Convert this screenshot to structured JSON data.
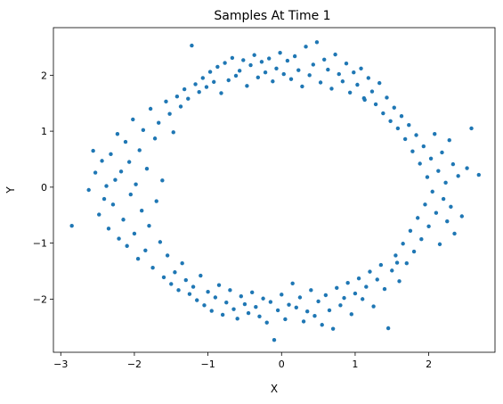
{
  "chart_data": {
    "type": "scatter",
    "title": "Samples At Time 1",
    "xlabel": "X",
    "ylabel": "Y",
    "xlim": [
      -3.1,
      2.9
    ],
    "ylim": [
      -2.95,
      2.85
    ],
    "xticks": [
      -3,
      -2,
      -1,
      0,
      1,
      2
    ],
    "yticks": [
      -2,
      -1,
      0,
      1,
      2
    ],
    "xtick_labels": [
      "−3",
      "−2",
      "−1",
      "0",
      "1",
      "2"
    ],
    "ytick_labels": [
      "−2",
      "−1",
      "0",
      "1",
      "2"
    ],
    "grid": false,
    "legend": "none",
    "series": [
      {
        "color": "#1f77b4",
        "note_points_generated": "ring of samples centered near origin, radius ~2.0 with spread ~0.25",
        "points": [
          [
            -2.85,
            -0.69
          ],
          [
            -2.62,
            -0.05
          ],
          [
            -2.56,
            0.65
          ],
          [
            -2.53,
            0.26
          ],
          [
            -2.48,
            -0.49
          ],
          [
            -2.44,
            0.47
          ],
          [
            -2.41,
            -0.21
          ],
          [
            -2.38,
            0.02
          ],
          [
            -2.35,
            -0.74
          ],
          [
            -2.32,
            0.59
          ],
          [
            -2.29,
            -0.31
          ],
          [
            -2.26,
            0.13
          ],
          [
            -2.23,
            0.95
          ],
          [
            -2.21,
            -0.92
          ],
          [
            -2.18,
            0.28
          ],
          [
            -2.15,
            -0.58
          ],
          [
            -2.12,
            0.81
          ],
          [
            -2.1,
            -1.05
          ],
          [
            -2.07,
            0.45
          ],
          [
            -2.05,
            -0.13
          ],
          [
            -2.02,
            1.21
          ],
          [
            -2.0,
            -0.83
          ],
          [
            -1.98,
            0.05
          ],
          [
            -1.95,
            -1.28
          ],
          [
            -1.93,
            0.66
          ],
          [
            -1.9,
            -0.42
          ],
          [
            -1.88,
            1.02
          ],
          [
            -1.85,
            -1.13
          ],
          [
            -1.83,
            0.33
          ],
          [
            -1.8,
            -0.69
          ],
          [
            -1.78,
            1.4
          ],
          [
            -1.75,
            -1.44
          ],
          [
            -1.72,
            0.87
          ],
          [
            -1.7,
            -0.25
          ],
          [
            -1.67,
            1.15
          ],
          [
            -1.65,
            -0.98
          ],
          [
            -1.62,
            0.12
          ],
          [
            -1.6,
            -1.61
          ],
          [
            -1.57,
            1.53
          ],
          [
            -1.55,
            -1.22
          ],
          [
            -1.52,
            1.31
          ],
          [
            -1.5,
            -1.73
          ],
          [
            -1.47,
            0.98
          ],
          [
            -1.45,
            -1.52
          ],
          [
            -1.42,
            1.62
          ],
          [
            -1.4,
            -1.84
          ],
          [
            -1.37,
            1.44
          ],
          [
            -1.35,
            -1.36
          ],
          [
            -1.32,
            1.75
          ],
          [
            -1.3,
            -1.66
          ],
          [
            -1.27,
            1.58
          ],
          [
            -1.25,
            -1.91
          ],
          [
            -1.22,
            2.53
          ],
          [
            -1.2,
            -1.78
          ],
          [
            -1.17,
            1.84
          ],
          [
            -1.15,
            -2.02
          ],
          [
            -1.12,
            1.7
          ],
          [
            -1.1,
            -1.58
          ],
          [
            -1.07,
            1.95
          ],
          [
            -1.05,
            -2.11
          ],
          [
            -1.02,
            1.79
          ],
          [
            -1.0,
            -1.87
          ],
          [
            -0.97,
            2.06
          ],
          [
            -0.95,
            -2.21
          ],
          [
            -0.92,
            1.88
          ],
          [
            -0.9,
            -1.97
          ],
          [
            -0.87,
            2.15
          ],
          [
            -0.85,
            -1.75
          ],
          [
            -0.82,
            1.68
          ],
          [
            -0.8,
            -2.28
          ],
          [
            -0.77,
            2.22
          ],
          [
            -0.75,
            -2.06
          ],
          [
            -0.72,
            1.91
          ],
          [
            -0.7,
            -1.84
          ],
          [
            -0.67,
            2.31
          ],
          [
            -0.65,
            -2.18
          ],
          [
            -0.62,
            1.99
          ],
          [
            -0.6,
            -2.35
          ],
          [
            -0.57,
            2.08
          ],
          [
            -0.55,
            -1.95
          ],
          [
            -0.52,
            2.27
          ],
          [
            -0.5,
            -2.09
          ],
          [
            -0.47,
            1.81
          ],
          [
            -0.45,
            -2.25
          ],
          [
            -0.42,
            2.18
          ],
          [
            -0.4,
            -1.88
          ],
          [
            -0.37,
            2.36
          ],
          [
            -0.35,
            -2.14
          ],
          [
            -0.32,
            1.96
          ],
          [
            -0.3,
            -2.31
          ],
          [
            -0.27,
            2.24
          ],
          [
            -0.25,
            -1.99
          ],
          [
            -0.22,
            2.05
          ],
          [
            -0.2,
            -2.42
          ],
          [
            -0.17,
            2.3
          ],
          [
            -0.15,
            -2.05
          ],
          [
            -0.12,
            1.89
          ],
          [
            -0.1,
            -2.73
          ],
          [
            -0.07,
            2.12
          ],
          [
            -0.05,
            -2.2
          ],
          [
            -0.02,
            2.4
          ],
          [
            0.0,
            -1.92
          ],
          [
            0.03,
            2.02
          ],
          [
            0.05,
            -2.36
          ],
          [
            0.08,
            2.26
          ],
          [
            0.1,
            -2.1
          ],
          [
            0.13,
            1.93
          ],
          [
            0.15,
            -1.72
          ],
          [
            0.18,
            2.34
          ],
          [
            0.2,
            -2.15
          ],
          [
            0.23,
            2.09
          ],
          [
            0.25,
            -1.97
          ],
          [
            0.28,
            1.8
          ],
          [
            0.3,
            -2.4
          ],
          [
            0.33,
            2.51
          ],
          [
            0.35,
            -2.22
          ],
          [
            0.38,
            2.0
          ],
          [
            0.4,
            -1.84
          ],
          [
            0.43,
            2.19
          ],
          [
            0.45,
            -2.3
          ],
          [
            0.48,
            2.59
          ],
          [
            0.5,
            -2.04
          ],
          [
            0.53,
            1.87
          ],
          [
            0.55,
            -2.46
          ],
          [
            0.58,
            2.28
          ],
          [
            0.6,
            -1.93
          ],
          [
            0.63,
            2.1
          ],
          [
            0.65,
            -2.2
          ],
          [
            0.68,
            1.76
          ],
          [
            0.7,
            -2.53
          ],
          [
            0.73,
            2.37
          ],
          [
            0.75,
            -1.8
          ],
          [
            0.78,
            2.02
          ],
          [
            0.8,
            -2.11
          ],
          [
            0.83,
            1.89
          ],
          [
            0.85,
            -1.98
          ],
          [
            0.88,
            2.21
          ],
          [
            0.9,
            -1.71
          ],
          [
            0.93,
            1.69
          ],
          [
            0.95,
            -2.27
          ],
          [
            0.98,
            2.05
          ],
          [
            1.0,
            -1.9
          ],
          [
            1.03,
            1.83
          ],
          [
            1.05,
            -1.63
          ],
          [
            1.08,
            2.12
          ],
          [
            1.1,
            -2.0
          ],
          [
            1.13,
            1.56
          ],
          [
            1.15,
            -1.78
          ],
          [
            1.18,
            1.95
          ],
          [
            1.2,
            -1.51
          ],
          [
            1.23,
            1.71
          ],
          [
            1.25,
            -2.13
          ],
          [
            1.28,
            1.48
          ],
          [
            1.3,
            -1.65
          ],
          [
            1.33,
            1.86
          ],
          [
            1.35,
            -1.39
          ],
          [
            1.38,
            1.32
          ],
          [
            1.4,
            -1.82
          ],
          [
            1.43,
            1.6
          ],
          [
            1.45,
            -2.52
          ],
          [
            1.48,
            1.18
          ],
          [
            1.5,
            -1.49
          ],
          [
            1.53,
            1.42
          ],
          [
            1.55,
            -1.22
          ],
          [
            1.58,
            1.05
          ],
          [
            1.6,
            -1.68
          ],
          [
            1.63,
            1.27
          ],
          [
            1.65,
            -1.01
          ],
          [
            1.68,
            0.86
          ],
          [
            1.7,
            -1.36
          ],
          [
            1.73,
            1.11
          ],
          [
            1.75,
            -0.78
          ],
          [
            1.78,
            0.64
          ],
          [
            1.8,
            -1.15
          ],
          [
            1.83,
            0.93
          ],
          [
            1.85,
            -0.55
          ],
          [
            1.88,
            0.42
          ],
          [
            1.9,
            -0.93
          ],
          [
            1.93,
            0.73
          ],
          [
            1.95,
            -0.31
          ],
          [
            1.98,
            0.18
          ],
          [
            2.0,
            -0.7
          ],
          [
            2.03,
            0.51
          ],
          [
            2.05,
            -0.08
          ],
          [
            2.08,
            0.95
          ],
          [
            2.1,
            -0.46
          ],
          [
            2.13,
            0.29
          ],
          [
            2.15,
            -1.02
          ],
          [
            2.18,
            0.62
          ],
          [
            2.2,
            -0.21
          ],
          [
            2.23,
            0.08
          ],
          [
            2.25,
            -0.61
          ],
          [
            2.28,
            0.84
          ],
          [
            2.3,
            -0.35
          ],
          [
            2.33,
            0.41
          ],
          [
            2.35,
            -0.83
          ],
          [
            2.4,
            0.2
          ],
          [
            2.45,
            -0.52
          ],
          [
            2.52,
            0.34
          ],
          [
            2.58,
            1.05
          ],
          [
            2.68,
            0.22
          ],
          [
            1.57,
            -1.35
          ],
          [
            1.12,
            1.59
          ]
        ]
      }
    ]
  }
}
